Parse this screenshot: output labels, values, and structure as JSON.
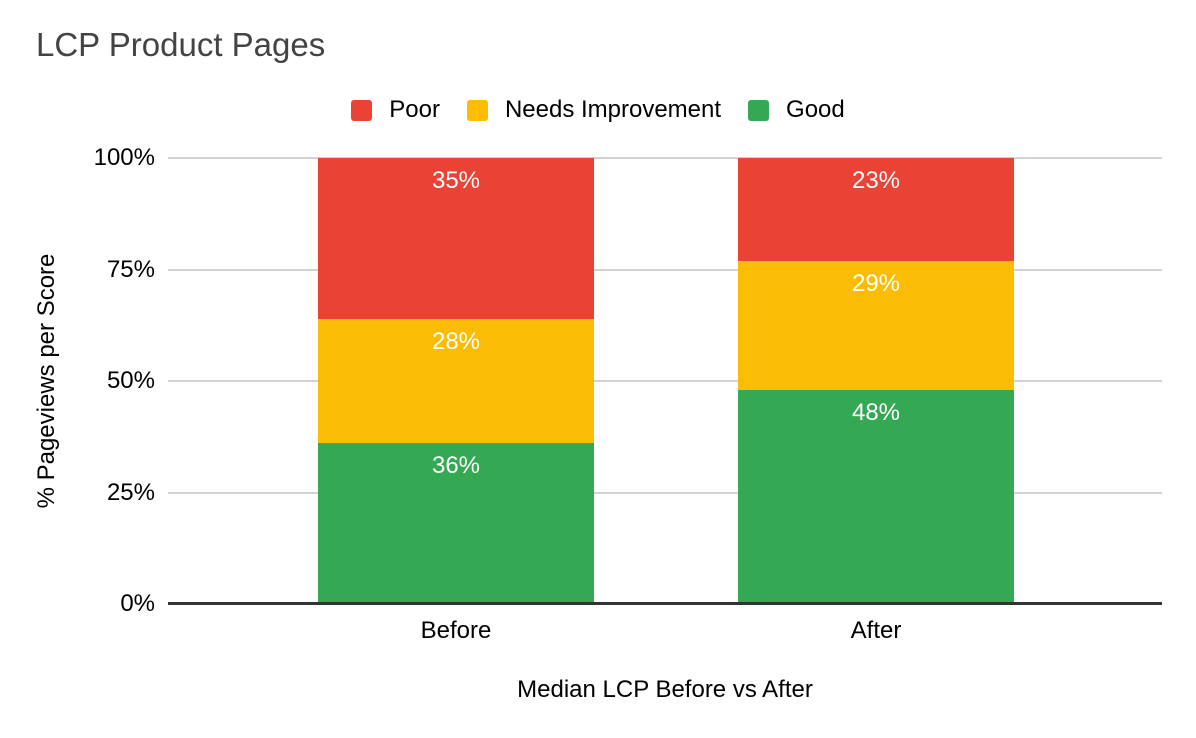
{
  "chart_data": {
    "type": "bar",
    "stacked": true,
    "units": "percent",
    "title": "LCP Product Pages",
    "categories": [
      "Before",
      "After"
    ],
    "series": [
      {
        "name": "Good",
        "color": "#34A853",
        "values": [
          36,
          48
        ]
      },
      {
        "name": "Needs Improvement",
        "color": "#FBBC04",
        "values": [
          28,
          29
        ]
      },
      {
        "name": "Poor",
        "color": "#EA4335",
        "values": [
          35,
          23
        ]
      }
    ],
    "legend": {
      "position": "top",
      "items": [
        {
          "label": "Poor",
          "color": "#EA4335"
        },
        {
          "label": "Needs Improvement",
          "color": "#FBBC04"
        },
        {
          "label": "Good",
          "color": "#34A853"
        }
      ]
    },
    "xlabel": "Median LCP Before vs After",
    "ylabel": "% Pageviews per Score",
    "y_ticks": [
      "0%",
      "25%",
      "50%",
      "75%",
      "100%"
    ],
    "ylim": [
      0,
      100
    ],
    "grid": true,
    "data_label_suffix": "%",
    "data_label_color": "#FFFFFF",
    "gridline_color": "#D2D2D2",
    "baseline_color": "#333333",
    "title_color": "#434343"
  }
}
